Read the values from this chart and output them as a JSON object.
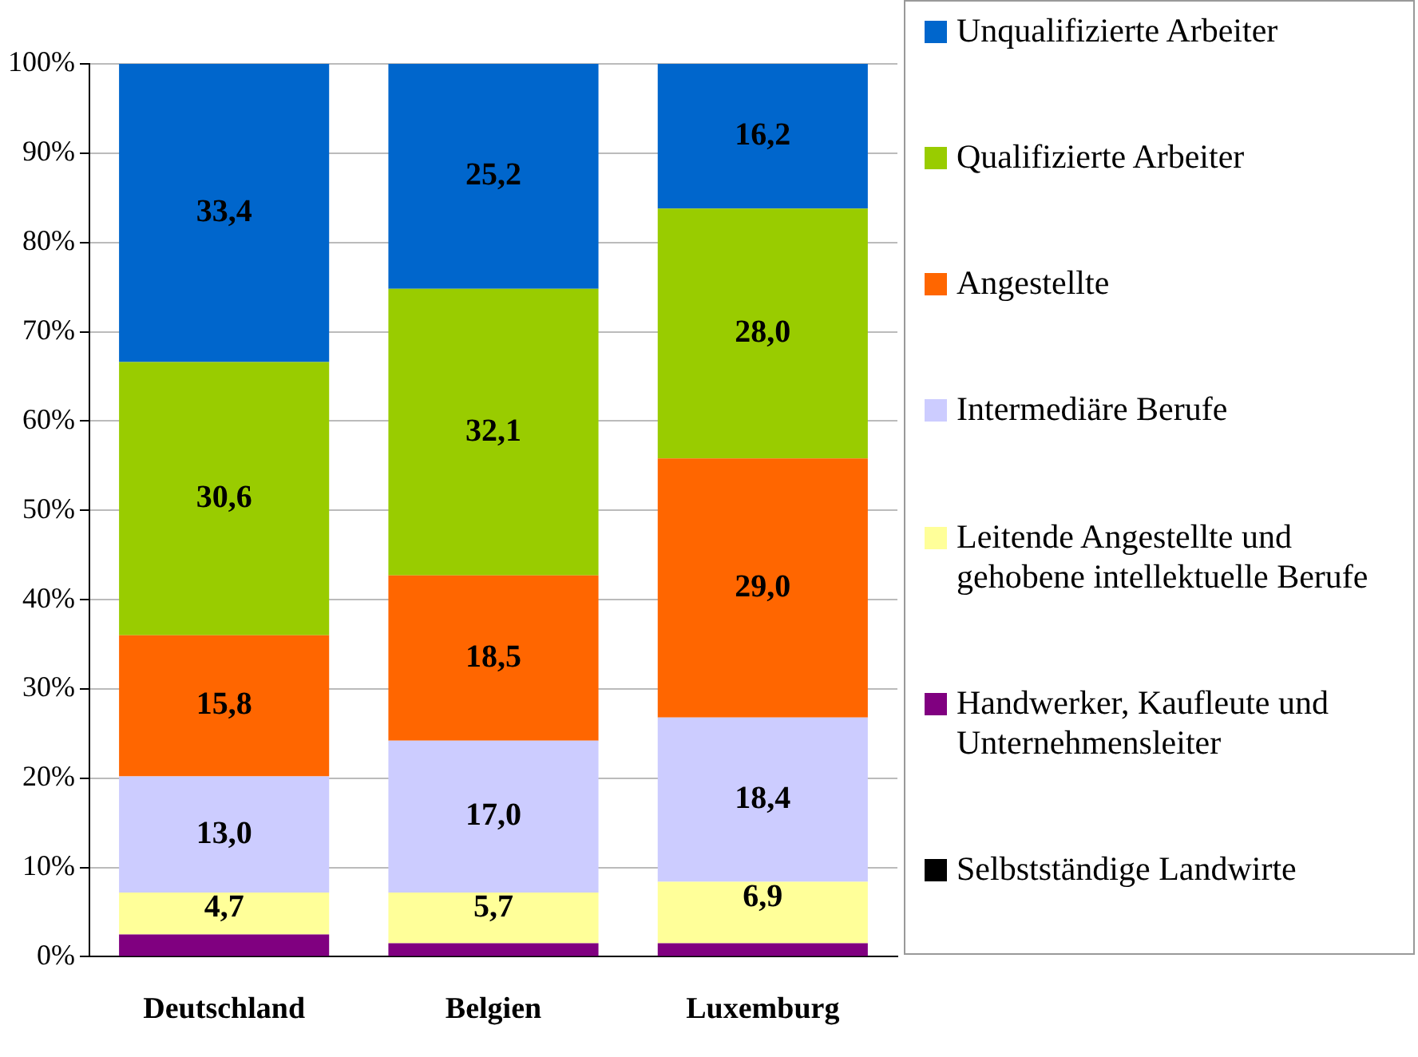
{
  "chart_data": {
    "type": "bar",
    "stacked": true,
    "categories": [
      "Deutschland",
      "Belgien",
      "Luxemburg"
    ],
    "series": [
      {
        "name": "Selbstständige Landwirte",
        "color": "#000000",
        "values": [
          0,
          0,
          0
        ],
        "value_labels": [
          null,
          null,
          null
        ]
      },
      {
        "name": "Handwerker, Kaufleute und Unternehmensleiter",
        "color": "#800080",
        "values": [
          2.5,
          1.5,
          1.5
        ],
        "value_labels": [
          null,
          null,
          null
        ]
      },
      {
        "name": " Leitende Angestellte und gehobene intellektuelle Berufe",
        "color": "#ffff99",
        "values": [
          4.7,
          5.7,
          6.9
        ],
        "value_labels": [
          "4,7",
          "5,7",
          "6,9"
        ]
      },
      {
        "name": "Intermediäre Berufe",
        "color": "#ccccff",
        "values": [
          13.0,
          17.0,
          18.4
        ],
        "value_labels": [
          "13,0",
          "17,0",
          "18,4"
        ]
      },
      {
        "name": "Angestellte",
        "color": "#ff6600",
        "values": [
          15.8,
          18.5,
          29.0
        ],
        "value_labels": [
          "15,8",
          "18,5",
          "29,0"
        ]
      },
      {
        "name": "Qualifizierte Arbeiter",
        "color": "#99cc00",
        "values": [
          30.6,
          32.1,
          28.0
        ],
        "value_labels": [
          "30,6",
          "32,1",
          "28,0"
        ]
      },
      {
        "name": "Unqualifizierte Arbeiter",
        "color": "#0066cc",
        "values": [
          33.4,
          25.2,
          16.2
        ],
        "value_labels": [
          "33,4",
          "25,2",
          "16,2"
        ]
      }
    ],
    "ylim": [
      0,
      100
    ],
    "yticks": [
      {
        "value": 0,
        "label": "0%"
      },
      {
        "value": 10,
        "label": "10%"
      },
      {
        "value": 20,
        "label": "20%"
      },
      {
        "value": 30,
        "label": "30%"
      },
      {
        "value": 40,
        "label": "40%"
      },
      {
        "value": 50,
        "label": "50%"
      },
      {
        "value": 60,
        "label": "60%"
      },
      {
        "value": 70,
        "label": "70%"
      },
      {
        "value": 80,
        "label": "80%"
      },
      {
        "value": 90,
        "label": "90%"
      },
      {
        "value": 100,
        "label": "100%"
      }
    ],
    "grid": "y",
    "legend": "right"
  }
}
